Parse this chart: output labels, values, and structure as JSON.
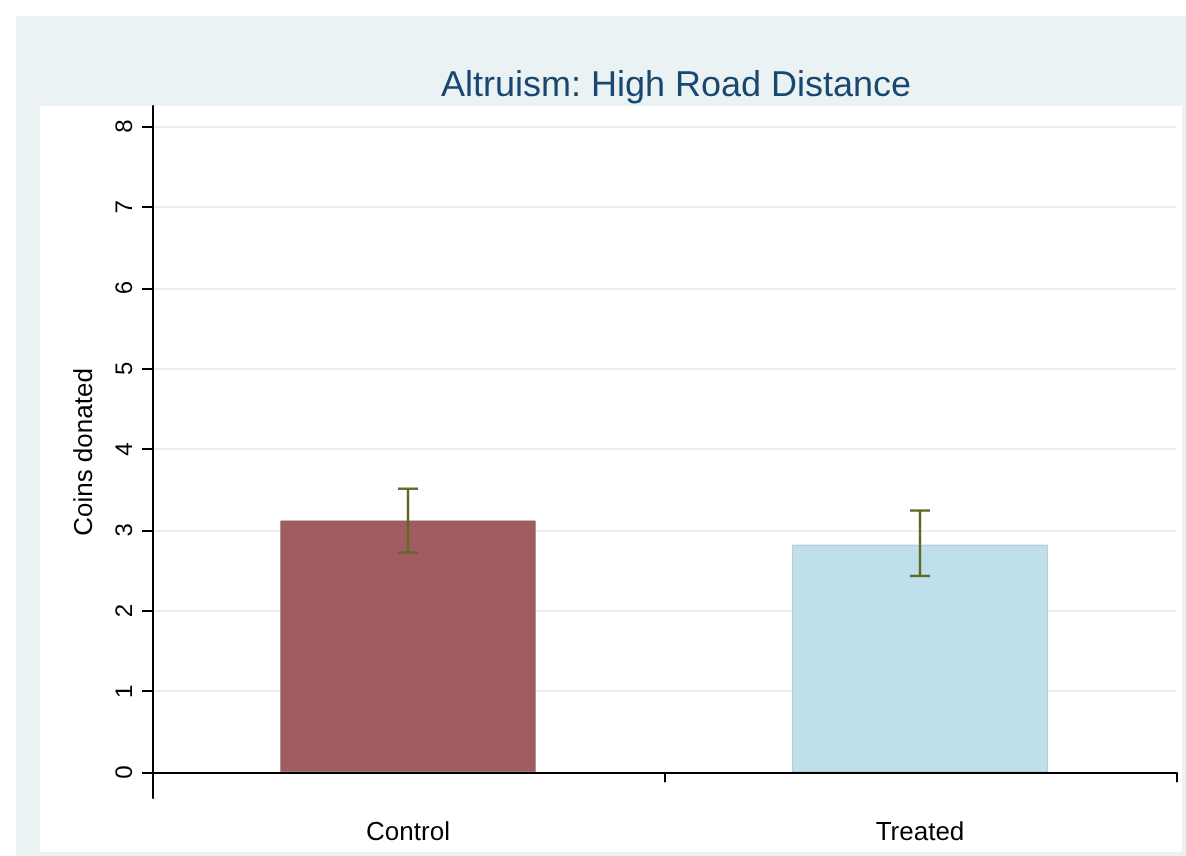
{
  "chart_data": {
    "type": "bar",
    "title": "Altruism: High Road Distance",
    "ylabel": "Coins donated",
    "categories": [
      "Control",
      "Treated"
    ],
    "values": [
      3.12,
      2.82
    ],
    "colors": [
      "#a05c60",
      "#bfe0ea"
    ],
    "errors": [
      [
        2.72,
        3.51
      ],
      [
        2.43,
        3.24
      ]
    ],
    "ylim": [
      -0.32,
      8.25
    ],
    "yticks": [
      0,
      1,
      2,
      3,
      4,
      5,
      6,
      7,
      8
    ],
    "grid": "y"
  }
}
